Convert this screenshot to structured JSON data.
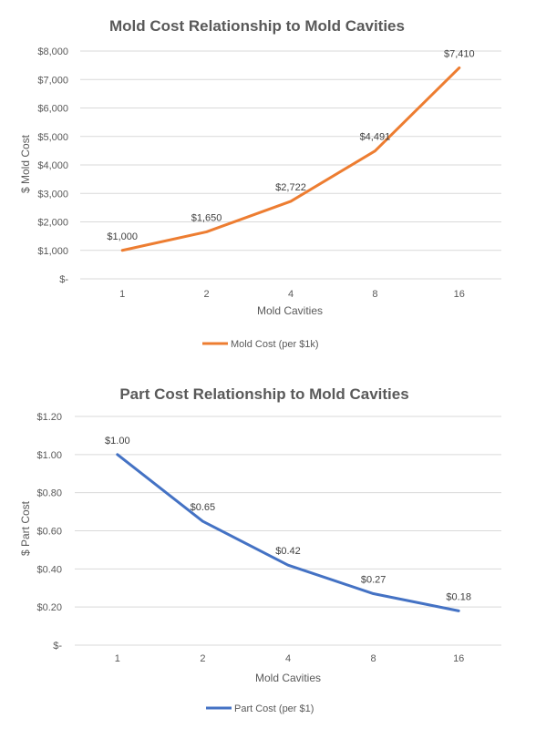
{
  "chart_data": [
    {
      "type": "line",
      "title": "Mold Cost Relationship to Mold Cavities",
      "xlabel": "Mold Cavities",
      "ylabel": "$ Mold Cost",
      "categories": [
        "1",
        "2",
        "4",
        "8",
        "16"
      ],
      "series": [
        {
          "name": "Mold Cost (per $1k)",
          "values": [
            1000,
            1650,
            2722,
            4491,
            7410
          ],
          "labels": [
            "$1,000",
            "$1,650",
            "$2,722",
            "$4,491",
            "$7,410"
          ],
          "color": "#ED7D31"
        }
      ],
      "ylim": [
        0,
        8000
      ],
      "yticks": [
        0,
        1000,
        2000,
        3000,
        4000,
        5000,
        6000,
        7000,
        8000
      ],
      "ytick_labels": [
        "$-",
        "$1,000",
        "$2,000",
        "$3,000",
        "$4,000",
        "$5,000",
        "$6,000",
        "$7,000",
        "$8,000"
      ],
      "grid": true,
      "legend": "bottom"
    },
    {
      "type": "line",
      "title": "Part Cost Relationship to Mold Cavities",
      "xlabel": "Mold Cavities",
      "ylabel": "$ Part Cost",
      "categories": [
        "1",
        "2",
        "4",
        "8",
        "16"
      ],
      "series": [
        {
          "name": "Part Cost (per $1)",
          "values": [
            1.0,
            0.65,
            0.42,
            0.27,
            0.18
          ],
          "labels": [
            "$1.00",
            "$0.65",
            "$0.42",
            "$0.27",
            "$0.18"
          ],
          "color": "#4472C4"
        }
      ],
      "ylim": [
        0,
        1.2
      ],
      "yticks": [
        0,
        0.2,
        0.4,
        0.6,
        0.8,
        1.0,
        1.2
      ],
      "ytick_labels": [
        "$-",
        "$0.20",
        "$0.40",
        "$0.60",
        "$0.80",
        "$1.00",
        "$1.20"
      ],
      "grid": true,
      "legend": "bottom"
    }
  ]
}
